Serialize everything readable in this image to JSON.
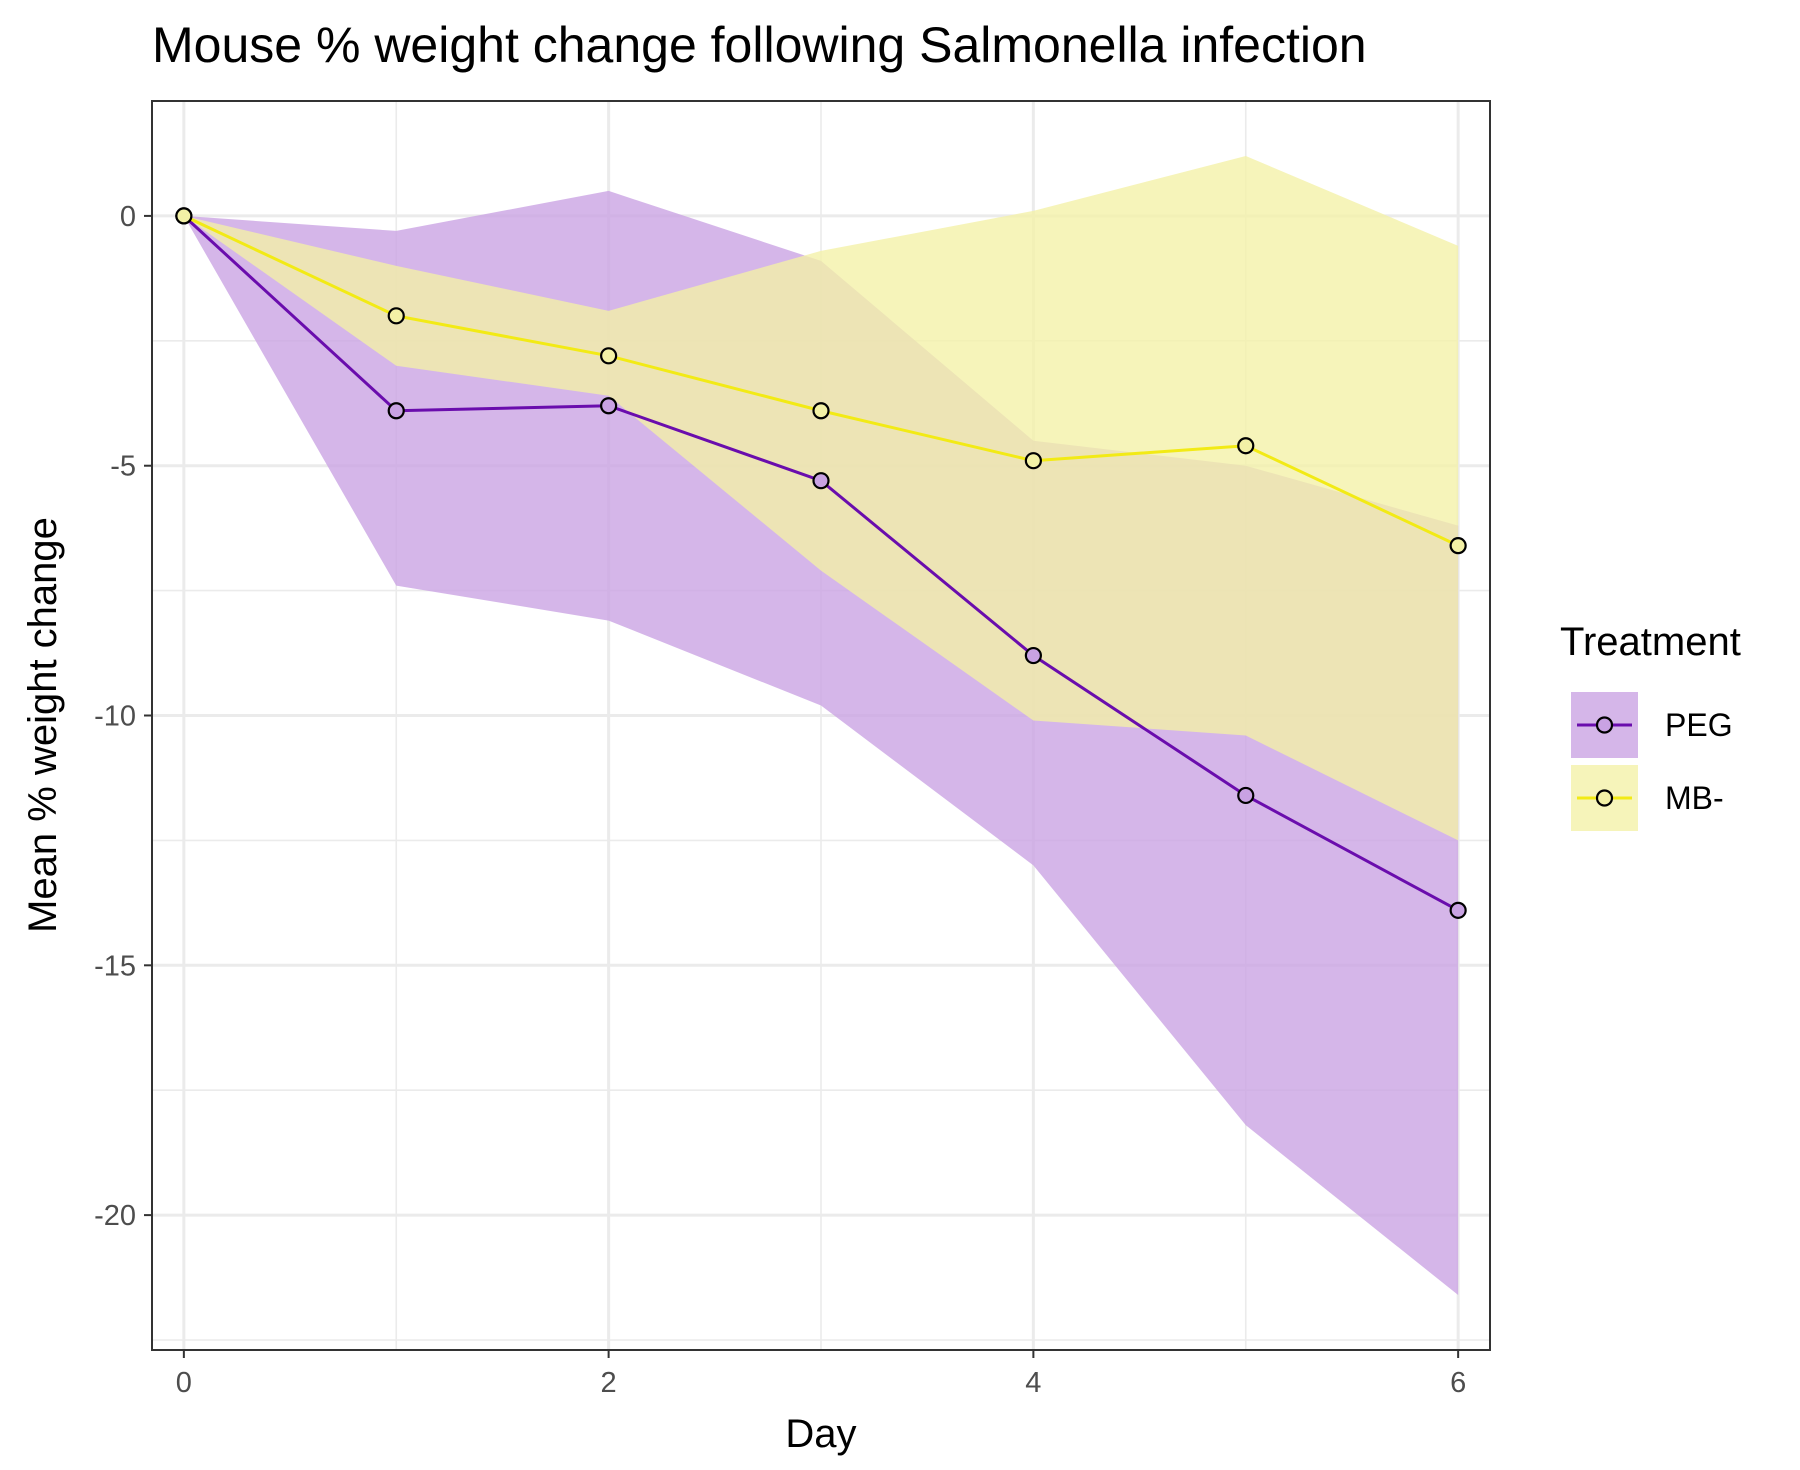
{
  "chart_data": {
    "type": "line",
    "title": "Mouse % weight change following Salmonella infection",
    "xlabel": "Day",
    "ylabel": "Mean % weight change",
    "xlim": [
      -0.15,
      6.15
    ],
    "ylim": [
      -22.7,
      2.3
    ],
    "x_ticks": [
      0,
      2,
      4,
      6
    ],
    "x_tick_labels": [
      "0",
      "2",
      "4",
      "6"
    ],
    "y_ticks": [
      0,
      -5,
      -10,
      -15,
      -20
    ],
    "y_tick_labels": [
      "0",
      "-5",
      "-10",
      "-15",
      "-20"
    ],
    "grid": true,
    "legend": {
      "title": "Treatment",
      "position": "right"
    },
    "x": [
      0,
      1,
      2,
      3,
      4,
      5,
      6
    ],
    "series": [
      {
        "name": "PEG",
        "color": "#6a0dad",
        "band_color": "#c9a2e3",
        "values": [
          0,
          -3.9,
          -3.8,
          -5.3,
          -8.8,
          -11.6,
          -13.9
        ],
        "lower": [
          0,
          -7.4,
          -8.1,
          -9.8,
          -13.0,
          -18.2,
          -21.6
        ],
        "upper": [
          0,
          -0.3,
          0.5,
          -0.9,
          -4.5,
          -5.0,
          -6.2
        ]
      },
      {
        "name": "MB-",
        "color": "#f2ea15",
        "band_color": "#f3f1a6",
        "values": [
          0,
          -2.0,
          -2.8,
          -3.9,
          -4.9,
          -4.6,
          -6.6
        ],
        "lower": [
          0,
          -3.0,
          -3.6,
          -7.1,
          -10.1,
          -10.4,
          -12.5
        ],
        "upper": [
          0,
          -1.0,
          -1.9,
          -0.7,
          0.1,
          1.2,
          -0.6
        ]
      }
    ]
  }
}
